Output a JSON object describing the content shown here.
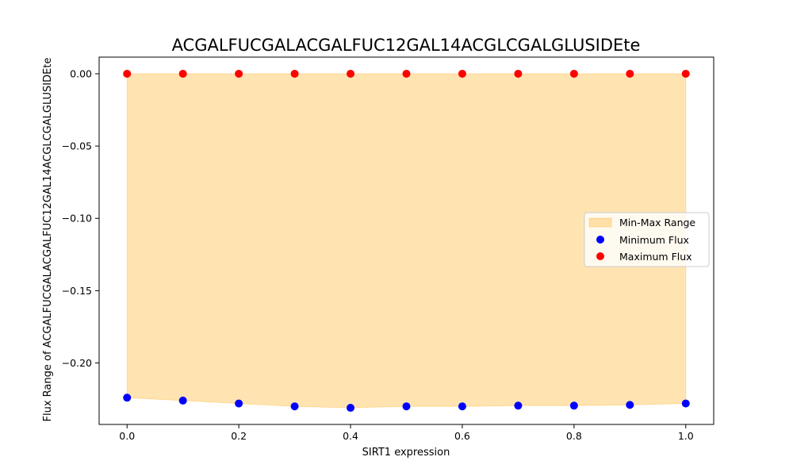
{
  "chart_data": {
    "type": "scatter",
    "title": "ACGALFUCGALACGALFUC12GAL14ACGLCGALGLUSIDEte",
    "xlabel": "SIRT1 expression",
    "ylabel": "Flux Range of ACGALFUCGALACGALFUC12GAL14ACGLCGALGLUSIDEte",
    "x": [
      0.0,
      0.1,
      0.2,
      0.3,
      0.4,
      0.5,
      0.6,
      0.7,
      0.8,
      0.9,
      1.0
    ],
    "series": [
      {
        "name": "Minimum Flux",
        "color": "#0000ff",
        "values": [
          -0.224,
          -0.226,
          -0.228,
          -0.23,
          -0.231,
          -0.23,
          -0.23,
          -0.2295,
          -0.2295,
          -0.229,
          -0.228
        ]
      },
      {
        "name": "Maximum Flux",
        "color": "#ff0000",
        "values": [
          0,
          0,
          0,
          0,
          0,
          0,
          0,
          0,
          0,
          0,
          0
        ]
      }
    ],
    "fill": {
      "name": "Min-Max Range",
      "color": "#ffa500",
      "opacity": 0.3
    },
    "xlim": [
      -0.05,
      1.05
    ],
    "ylim": [
      -0.2425,
      0.0115
    ],
    "xticks": [
      "0.0",
      "0.2",
      "0.4",
      "0.6",
      "0.8",
      "1.0"
    ],
    "yticks": [
      "0.00",
      "−0.05",
      "−0.10",
      "−0.15",
      "−0.20"
    ],
    "ytick_values": [
      0,
      -0.05,
      -0.1,
      -0.15,
      -0.2
    ],
    "xtick_values": [
      0,
      0.2,
      0.4,
      0.6,
      0.8,
      1.0
    ],
    "grid": false,
    "legend_position": "center-right"
  }
}
